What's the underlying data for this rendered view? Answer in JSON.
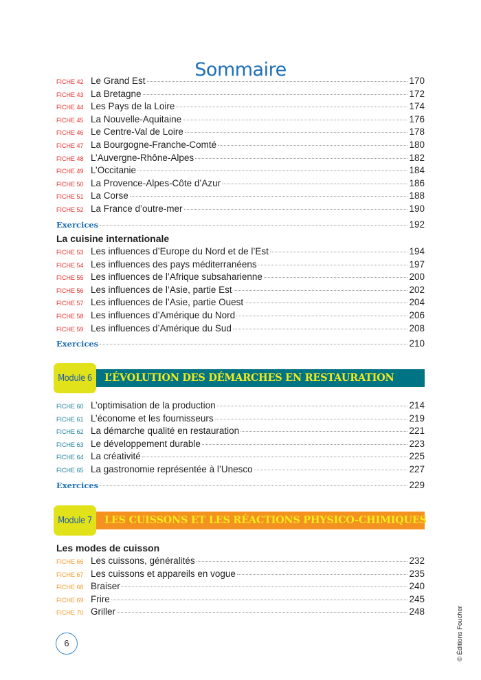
{
  "title": "Sommaire",
  "colors": {
    "accent": "#1f6fb5",
    "fiche_red": "#e4312b",
    "fiche_teal": "#1a7fa0",
    "fiche_orange": "#f39a2b",
    "module_box": "#e2e21b",
    "module6_bar": "#007385",
    "module7_bar": "#f39220",
    "module_text": "#f3ea1c"
  },
  "group1": {
    "items": [
      {
        "fiche": "FICHE 42",
        "label": "Le Grand Est",
        "page": "170"
      },
      {
        "fiche": "FICHE 43",
        "label": "La Bretagne",
        "page": "172"
      },
      {
        "fiche": "FICHE 44",
        "label": "Les Pays de la Loire",
        "page": "174"
      },
      {
        "fiche": "FICHE 45",
        "label": "La Nouvelle-Aquitaine",
        "page": "176"
      },
      {
        "fiche": "FICHE 46",
        "label": "Le Centre-Val de Loire",
        "page": "178"
      },
      {
        "fiche": "FICHE 47",
        "label": "La Bourgogne-Franche-Comté",
        "page": "180"
      },
      {
        "fiche": "FICHE 48",
        "label": "L’Auvergne-Rhône-Alpes",
        "page": "182"
      },
      {
        "fiche": "FICHE 49",
        "label": "L’Occitanie",
        "page": "184"
      },
      {
        "fiche": "FICHE 50",
        "label": "La Provence-Alpes-Côte d’Azur",
        "page": "186"
      },
      {
        "fiche": "FICHE 51",
        "label": "La Corse",
        "page": "188"
      },
      {
        "fiche": "FICHE 52",
        "label": "La France d’outre-mer",
        "page": "190"
      }
    ],
    "exercices": {
      "label": "Exercices",
      "page": "192"
    }
  },
  "group2": {
    "heading": "La cuisine internationale",
    "items": [
      {
        "fiche": "FICHE 53",
        "label": "Les influences d’Europe du Nord et de l’Est",
        "page": "194"
      },
      {
        "fiche": "FICHE 54",
        "label": "Les influences des pays méditerranéens",
        "page": "197"
      },
      {
        "fiche": "FICHE 55",
        "label": "Les influences de l’Afrique subsaharienne",
        "page": "200"
      },
      {
        "fiche": "FICHE 56",
        "label": "Les influences de l’Asie, partie Est",
        "page": "202"
      },
      {
        "fiche": "FICHE 57",
        "label": "Les influences de l’Asie, partie Ouest",
        "page": "204"
      },
      {
        "fiche": "FICHE 58",
        "label": "Les influences d’Amérique du Nord",
        "page": "206"
      },
      {
        "fiche": "FICHE 59",
        "label": "Les influences d’Amérique du Sud",
        "page": "208"
      }
    ],
    "exercices": {
      "label": "Exercices",
      "page": "210"
    }
  },
  "module6": {
    "tag": "Module 6",
    "title": "L’ÉVOLUTION DES DÉMARCHES EN RESTAURATION"
  },
  "group3": {
    "items": [
      {
        "fiche": "FICHE 60",
        "label": "L’optimisation de la production",
        "page": "214"
      },
      {
        "fiche": "FICHE 61",
        "label": "L’économe et les fournisseurs",
        "page": "219"
      },
      {
        "fiche": "FICHE 62",
        "label": "La démarche qualité en restauration",
        "page": "221"
      },
      {
        "fiche": "FICHE 63",
        "label": "Le développement durable",
        "page": "223"
      },
      {
        "fiche": "FICHE 64",
        "label": "La créativité",
        "page": "225"
      },
      {
        "fiche": "FICHE 65",
        "label": "La gastronomie représentée à l’Unesco",
        "page": "227"
      }
    ],
    "exercices": {
      "label": "Exercices",
      "page": "229"
    }
  },
  "module7": {
    "tag": "Module 7",
    "title": "LES CUISSONS ET LES RÉACTIONS PHYSICO-CHIMIQUES"
  },
  "group4": {
    "heading": "Les modes de cuisson",
    "items": [
      {
        "fiche": "FICHE 66",
        "label": "Les cuissons, généralités",
        "page": "232"
      },
      {
        "fiche": "FICHE 67",
        "label": "Les cuissons et appareils en vogue",
        "page": "235"
      },
      {
        "fiche": "FICHE 68",
        "label": "Braiser",
        "page": "240"
      },
      {
        "fiche": "FICHE 69",
        "label": "Frire",
        "page": "245"
      },
      {
        "fiche": "FICHE 70",
        "label": "Griller",
        "page": "248"
      }
    ]
  },
  "page_number": "6",
  "copyright": "© Éditions Foucher"
}
